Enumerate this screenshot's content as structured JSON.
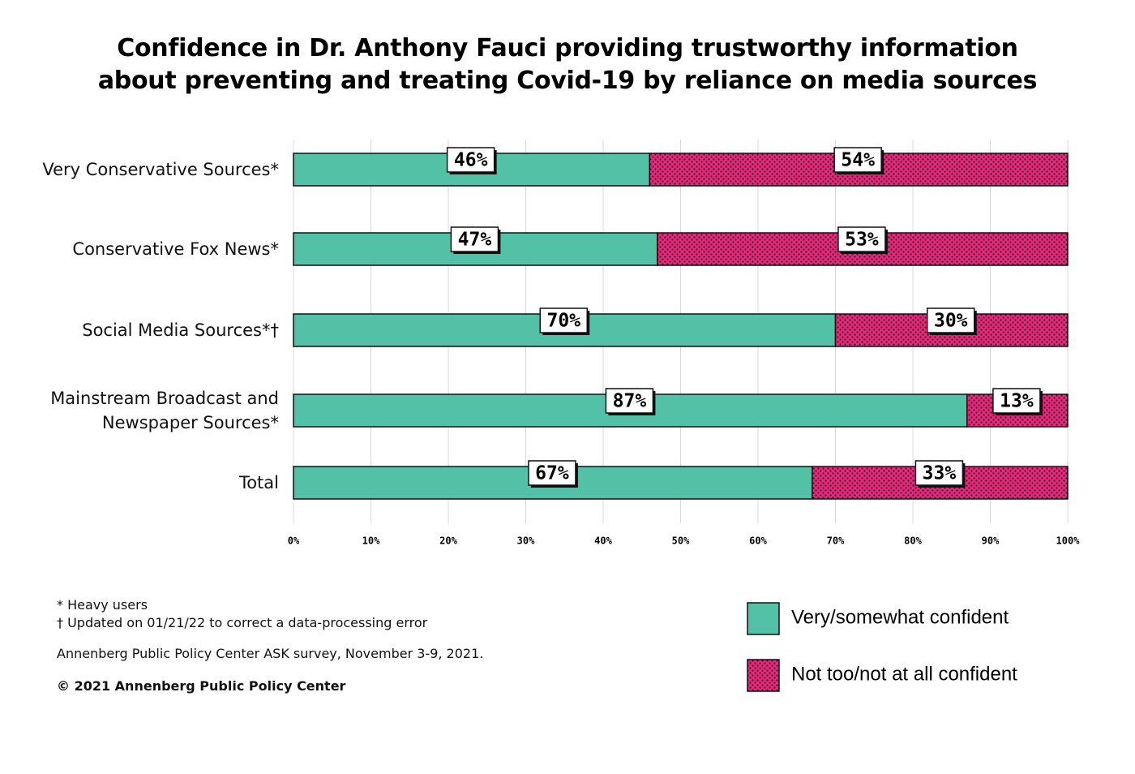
{
  "chart_data": {
    "type": "stacked-bar-horizontal",
    "title": "Confidence in Dr. Anthony Fauci providing trustworthy information about preventing and treating Covid-19 by reliance on media sources",
    "categories": [
      "Very Conservative Sources*",
      "Conservative Fox News*",
      "Social Media Sources*†",
      "Mainstream Broadcast and Newspaper Sources*",
      "Total"
    ],
    "series": [
      {
        "name": "Very/somewhat confident",
        "color": "#52c1a5",
        "values": [
          46,
          47,
          70,
          87,
          67
        ],
        "value_labels": [
          "46%",
          "47%",
          "70%",
          "87%",
          "67%"
        ]
      },
      {
        "name": "Not too/not at all confident",
        "color": "#e8287a",
        "values": [
          54,
          53,
          30,
          13,
          33
        ],
        "value_labels": [
          "54%",
          "53%",
          "30%",
          "13%",
          "33%"
        ]
      }
    ],
    "xlim": [
      0,
      100
    ],
    "xticks": [
      {
        "value": 0,
        "label": "0%"
      },
      {
        "value": 10,
        "label": "10%"
      },
      {
        "value": 20,
        "label": "20%"
      },
      {
        "value": 30,
        "label": "30%"
      },
      {
        "value": 40,
        "label": "40%"
      },
      {
        "value": 50,
        "label": "50%"
      },
      {
        "value": 60,
        "label": "60%"
      },
      {
        "value": 70,
        "label": "70%"
      },
      {
        "value": 80,
        "label": "80%"
      },
      {
        "value": 90,
        "label": "90%"
      },
      {
        "value": 100,
        "label": "100%"
      }
    ],
    "grid": true,
    "footnotes": [
      "* Heavy users",
      "† Updated on 01/21/22 to correct a data-processing error"
    ],
    "source": "Annenberg Public Policy Center ASK survey, November 3-9, 2021.",
    "copyright": "© 2021 Annenberg Public Policy Center"
  }
}
